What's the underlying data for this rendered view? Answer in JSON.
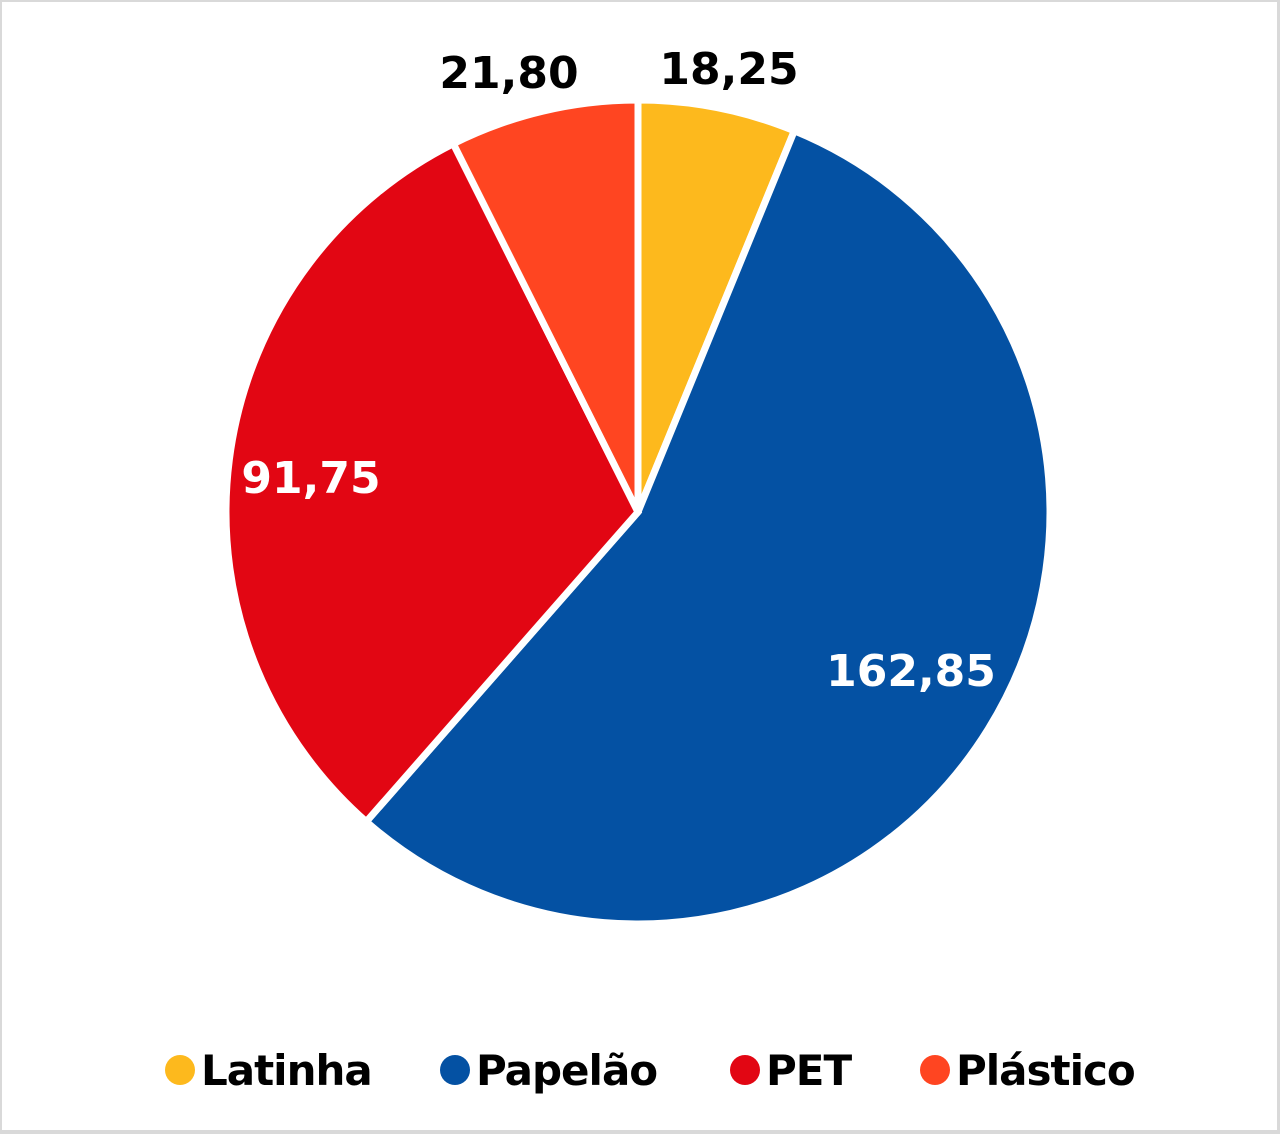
{
  "chart_data": {
    "type": "pie",
    "title": "",
    "categories": [
      "Latinha",
      "Papelão",
      "PET",
      "Plástico"
    ],
    "values": [
      18.25,
      162.85,
      91.75,
      21.8
    ],
    "labels": [
      "18,25",
      "162,85",
      "91,75",
      "21,80"
    ],
    "colors": [
      "#FDB91D",
      "#0451A3",
      "#E20613",
      "#FF4521"
    ],
    "label_colors": [
      "#000000",
      "#ffffff",
      "#ffffff",
      "#000000"
    ],
    "start_angle_deg": 0,
    "direction": "clockwise",
    "legend_position": "bottom"
  },
  "legend": {
    "items": [
      {
        "label": "Latinha",
        "color": "#FDB91D"
      },
      {
        "label": "Papelão",
        "color": "#0451A3"
      },
      {
        "label": "PET",
        "color": "#E20613"
      },
      {
        "label": "Plástico",
        "color": "#FF4521"
      }
    ]
  }
}
